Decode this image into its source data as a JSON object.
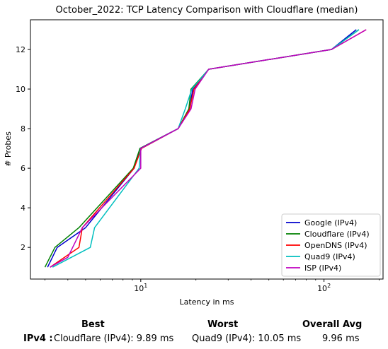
{
  "chart_data": {
    "type": "line",
    "title": "October_2022: TCP Latency Comparison with Cloudflare (median)",
    "xlabel": "Latency in ms",
    "ylabel": "# Probes",
    "x_scale": "log",
    "xlim": [
      2.5,
      210
    ],
    "ylim": [
      0.4,
      13.5
    ],
    "x_ticks": [
      10,
      100
    ],
    "x_tick_labels": [
      "10^1",
      "10^2"
    ],
    "y_ticks": [
      2,
      4,
      6,
      8,
      10,
      12
    ],
    "grid": false,
    "legend_position": "lower-right",
    "series": [
      {
        "name": "Google (IPv4)",
        "color": "#0000cc",
        "x": [
          3.1,
          3.5,
          5.0,
          9.2,
          9.9,
          16.0,
          18.5,
          19.2,
          23.5,
          110,
          150
        ],
        "y": [
          1,
          2,
          3,
          6,
          7,
          8,
          9,
          10,
          11,
          12,
          13
        ]
      },
      {
        "name": "Cloudflare (IPv4)",
        "color": "#008000",
        "x": [
          3.0,
          3.4,
          4.6,
          9.1,
          9.9,
          16.0,
          18.3,
          18.8,
          23.5,
          110,
          155
        ],
        "y": [
          1,
          2,
          3,
          6,
          7,
          8,
          9,
          10,
          11,
          12,
          13
        ]
      },
      {
        "name": "OpenDNS (IPv4)",
        "color": "#ff0000",
        "x": [
          3.2,
          4.6,
          4.8,
          9.2,
          10.1,
          16.0,
          18.5,
          19.5,
          23.5,
          110,
          170
        ],
        "y": [
          1,
          2,
          3,
          6,
          7,
          8,
          9,
          10,
          11,
          12,
          13
        ]
      },
      {
        "name": "Quad9 (IPv4)",
        "color": "#00bfbf",
        "x": [
          3.3,
          5.3,
          5.6,
          9.8,
          10.0,
          16.0,
          17.5,
          19.0,
          23.5,
          110,
          155
        ],
        "y": [
          1,
          2,
          3,
          6,
          7,
          8,
          9,
          10,
          11,
          12,
          13
        ]
      },
      {
        "name": "ISP (IPv4)",
        "color": "#bf00bf",
        "x": [
          3.2,
          4.0,
          4.8,
          10.0,
          10.0,
          16.0,
          18.8,
          19.8,
          23.5,
          110,
          170
        ],
        "y": [
          1,
          1.5,
          3,
          6,
          7,
          8,
          9,
          10,
          11,
          12,
          13
        ]
      }
    ]
  },
  "summary": {
    "best_header": "Best",
    "worst_header": "Worst",
    "avg_header": "Overall Avg",
    "row_label": "IPv4 :",
    "best_value": "Cloudflare (IPv4): 9.89 ms",
    "worst_value": "Quad9 (IPv4): 10.05 ms",
    "avg_value": "9.96 ms"
  }
}
